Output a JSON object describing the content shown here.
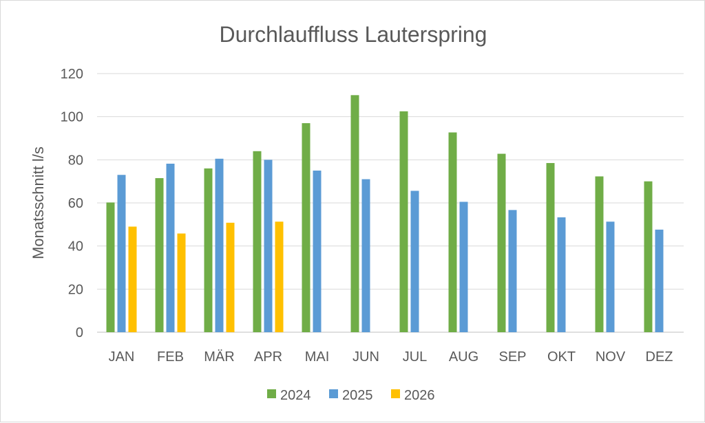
{
  "chart_data": {
    "type": "bar",
    "title": "Durchlauffluss Lauterspring",
    "xlabel": "",
    "ylabel": "Monatsschnitt l/s",
    "ylim": [
      0,
      120
    ],
    "yticks": [
      0,
      20,
      40,
      60,
      80,
      100,
      120
    ],
    "grid": true,
    "legend": "bottom",
    "categories": [
      "JAN",
      "FEB",
      "MÄR",
      "APR",
      "MAI",
      "JUN",
      "JUL",
      "AUG",
      "SEP",
      "OKT",
      "NOV",
      "DEZ"
    ],
    "series": [
      {
        "name": "2024",
        "color": "#70ad47",
        "values": [
          60.2,
          71.5,
          76,
          84,
          97,
          110,
          102.5,
          92.7,
          82.8,
          78.5,
          72.3,
          70
        ]
      },
      {
        "name": "2025",
        "color": "#5b9bd5",
        "values": [
          73,
          78.2,
          80.5,
          80,
          75,
          71,
          65.6,
          60.5,
          56.7,
          53.3,
          51.3,
          47.6
        ]
      },
      {
        "name": "2026",
        "color": "#ffc000",
        "values": [
          49,
          45.8,
          50.8,
          51.3,
          null,
          null,
          null,
          null,
          null,
          null,
          null,
          null
        ]
      }
    ]
  }
}
